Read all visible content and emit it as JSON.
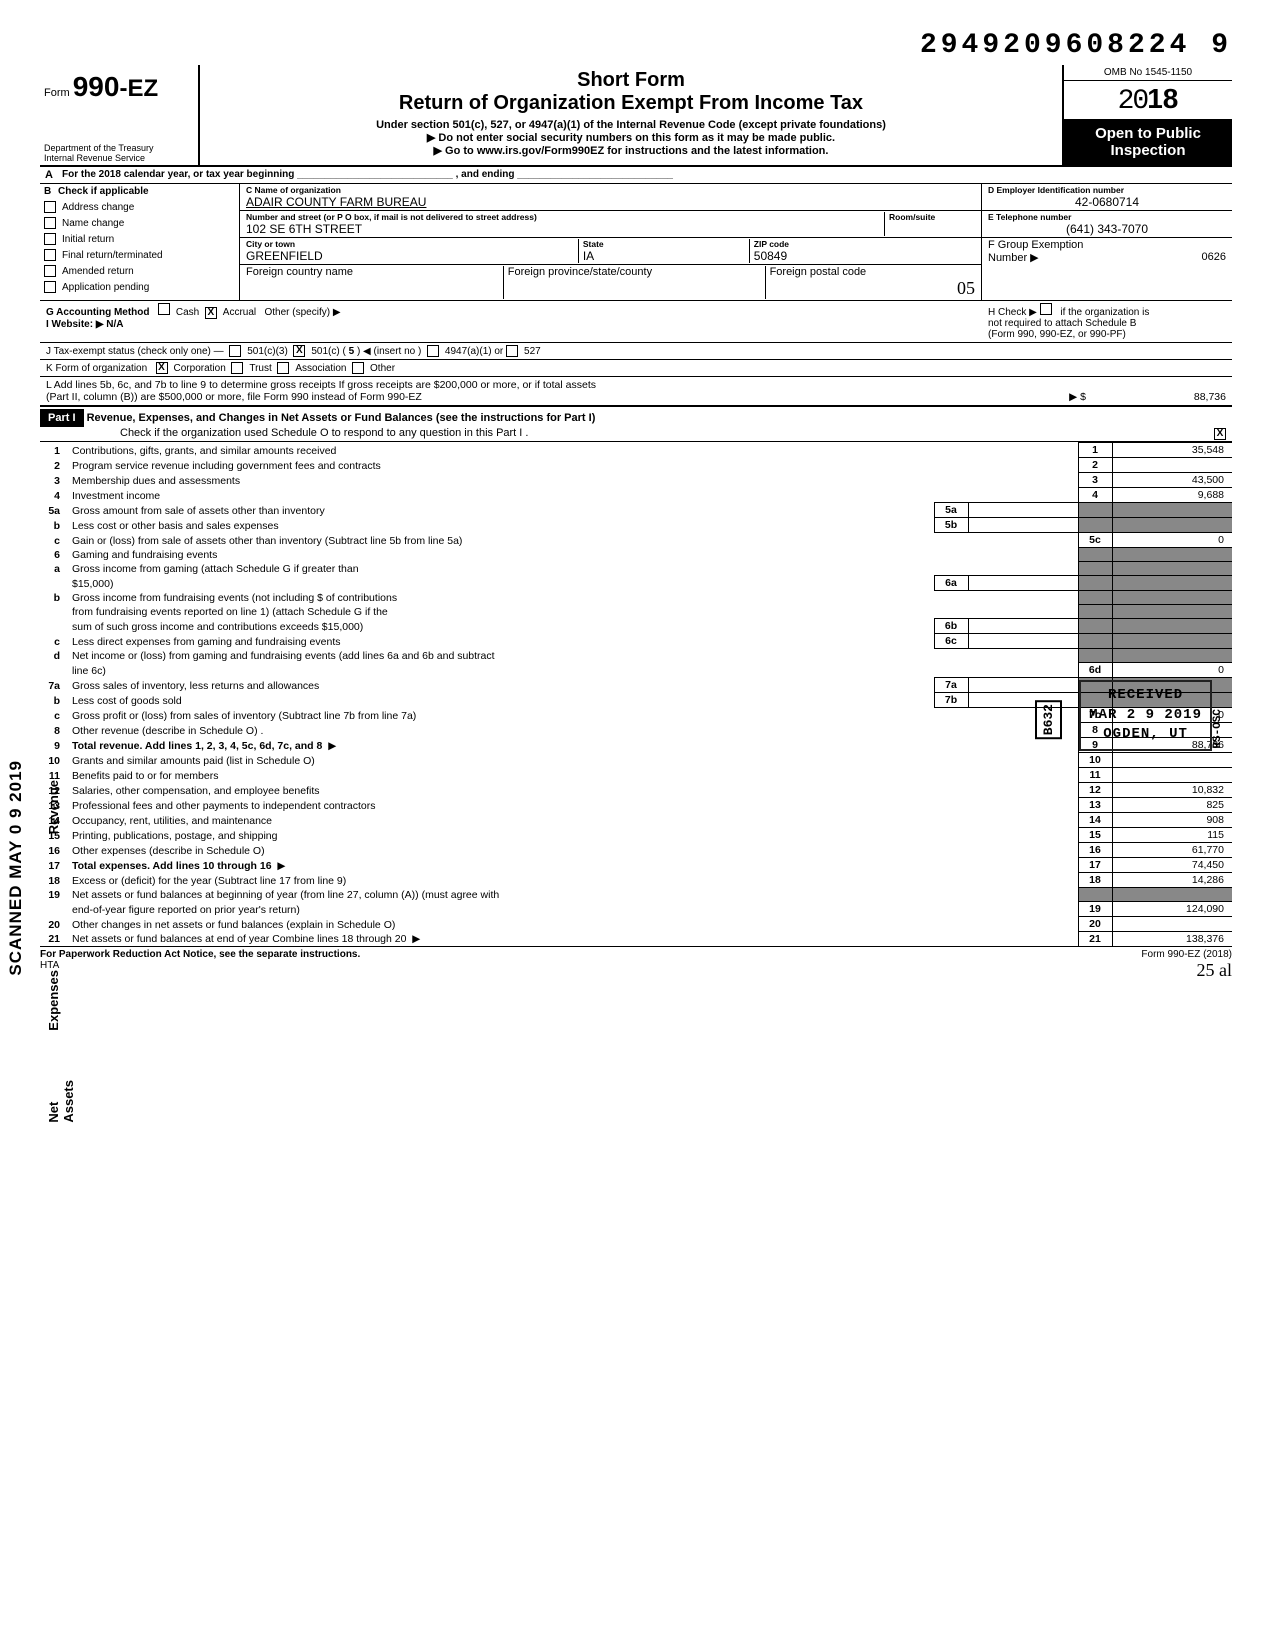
{
  "dln": "2949209608224 9",
  "header": {
    "form_prefix": "Form ",
    "form_number": "990",
    "form_suffix": "-EZ",
    "title_line1": "Short Form",
    "title_line2": "Return of Organization Exempt From Income Tax",
    "sub1": "Under section 501(c), 527, or 4947(a)(1) of the Internal Revenue Code (except private foundations)",
    "sub2": "▶  Do not enter social security numbers on this form as it may be made public.",
    "sub3": "▶  Go to www.irs.gov/Form990EZ for instructions and the latest information.",
    "omb": "OMB No 1545-1150",
    "year_pre": "20",
    "year_bold": "18",
    "open_pub_l1": "Open to Public",
    "open_pub_l2": "Inspection",
    "dept_l1": "Department of the Treasury",
    "dept_l2": "Internal Revenue Service"
  },
  "lineA": "For the 2018 calendar year, or tax year beginning ____________________________ , and ending ____________________________",
  "sectionB": {
    "heading": "Check if applicable",
    "items": [
      {
        "label": "Address change",
        "checked": false
      },
      {
        "label": "Name change",
        "checked": false
      },
      {
        "label": "Initial return",
        "checked": false
      },
      {
        "label": "Final return/terminated",
        "checked": false
      },
      {
        "label": "Amended return",
        "checked": false
      },
      {
        "label": "Application pending",
        "checked": false
      }
    ]
  },
  "sectionC": {
    "name_lbl": "C  Name of organization",
    "name_val": "ADAIR COUNTY FARM BUREAU",
    "addr_lbl": "Number and street (or P O  box, if mail is not delivered to street address)",
    "room_lbl": "Room/suite",
    "addr_val": "102 SE 6TH STREET",
    "city_lbl": "City or town",
    "city_val": "GREENFIELD",
    "state_lbl": "State",
    "state_val": "IA",
    "zip_lbl": "ZIP code",
    "zip_val": "50849",
    "fcountry_lbl": "Foreign country name",
    "fprov_lbl": "Foreign province/state/county",
    "fpost_lbl": "Foreign postal code",
    "hand_05": "05"
  },
  "sectionD": {
    "ein_lbl": "D  Employer Identification number",
    "ein_val": "42-0680714",
    "tel_lbl": "E  Telephone number",
    "tel_val": "(641) 343-7070",
    "grp_lbl": "F  Group Exemption",
    "grp_lbl2": "Number ▶",
    "grp_val": "0626"
  },
  "lineG": {
    "label": "G   Accounting Method",
    "cash": "Cash",
    "accrual": "Accrual",
    "other": "Other (specify)  ▶",
    "accrual_checked": true
  },
  "lineH": {
    "label": "H  Check ▶",
    "txt1": "if the organization is",
    "txt2": "not required to attach Schedule B",
    "txt3": "(Form 990, 990-EZ, or 990-PF)"
  },
  "lineI": {
    "label": "I     Website: ▶  N/A"
  },
  "lineJ": {
    "label": "J    Tax-exempt status (check only one) —",
    "opt1": "501(c)(3)",
    "opt2_pre": "501(c) (",
    "opt2_num": "5",
    "opt2_post": ") ◀ (insert no )",
    "opt3": "4947(a)(1) or",
    "opt4": "527",
    "opt2_checked": true
  },
  "lineK": {
    "label": "K   Form of organization",
    "corp": "Corporation",
    "corp_checked": true,
    "trust": "Trust",
    "assoc": "Association",
    "other": "Other"
  },
  "lineL": {
    "l1": "L   Add lines 5b, 6c, and 7b to line 9 to determine gross receipts  If gross receipts are $200,000 or more, or if total assets",
    "l2": "(Part II, column (B)) are $500,000 or more, file Form 990 instead of Form 990-EZ",
    "arrow": "▶ $",
    "val": "88,736"
  },
  "part1": {
    "hdr": "Part I",
    "title": "Revenue, Expenses, and Changes in Net Assets or Fund Balances (see the instructions for Part I)",
    "sub": "Check if the organization used Schedule O to respond to any question in this Part I  .",
    "sub_checked": true
  },
  "lines": [
    {
      "n": "1",
      "d": "Contributions, gifts, grants, and similar amounts received",
      "r": "1",
      "v": "35,548"
    },
    {
      "n": "2",
      "d": "Program service revenue including government fees and contracts",
      "r": "2",
      "v": ""
    },
    {
      "n": "3",
      "d": "Membership dues and assessments",
      "r": "3",
      "v": "43,500"
    },
    {
      "n": "4",
      "d": "Investment income",
      "r": "4",
      "v": "9,688"
    },
    {
      "n": "5a",
      "d": "Gross amount from sale of assets other than inventory",
      "mn": "5a",
      "mv": "",
      "shade": true
    },
    {
      "n": "b",
      "d": "Less  cost or other basis and sales expenses",
      "mn": "5b",
      "mv": "",
      "shade": true
    },
    {
      "n": "c",
      "d": "Gain or (loss) from sale of assets other than inventory (Subtract line 5b from line 5a)",
      "r": "5c",
      "v": "0"
    },
    {
      "n": "6",
      "d": "Gaming and fundraising events",
      "shade": true
    },
    {
      "n": "a",
      "d": "Gross income from gaming (attach Schedule G if greater than",
      "cont": true,
      "shade": true
    },
    {
      "n": "",
      "d": "$15,000)",
      "mn": "6a",
      "mv": "",
      "shade": true
    },
    {
      "n": "b",
      "d": "Gross income from fundraising events (not including        $                       of contributions",
      "cont": true,
      "shade": true
    },
    {
      "n": "",
      "d": "from fundraising events reported on line 1) (attach Schedule G if the",
      "cont": true,
      "shade": true
    },
    {
      "n": "",
      "d": "sum of such gross income and contributions exceeds $15,000)",
      "mn": "6b",
      "mv": "",
      "shade": true
    },
    {
      "n": "c",
      "d": "Less  direct expenses from gaming and fundraising events",
      "mn": "6c",
      "mv": "",
      "shade": true
    },
    {
      "n": "d",
      "d": "Net income or (loss) from gaming and fundraising events (add lines 6a and 6b and subtract",
      "cont": true,
      "shade": true
    },
    {
      "n": "",
      "d": "line 6c)",
      "r": "6d",
      "v": "0"
    },
    {
      "n": "7a",
      "d": "Gross sales of inventory, less returns and allowances",
      "mn": "7a",
      "mv": "",
      "shade": true
    },
    {
      "n": "b",
      "d": "Less  cost of goods sold",
      "mn": "7b",
      "mv": "",
      "shade": true
    },
    {
      "n": "c",
      "d": "Gross profit or (loss) from sales of inventory (Subtract line 7b from line 7a)",
      "r": "7c",
      "v": "0"
    },
    {
      "n": "8",
      "d": "Other revenue (describe in Schedule O) .",
      "r": "8",
      "v": ""
    },
    {
      "n": "9",
      "d": "Total revenue. Add lines 1, 2, 3, 4, 5c, 6d, 7c, and 8",
      "r": "9",
      "v": "88,736",
      "bold": true,
      "arrow": true
    },
    {
      "n": "10",
      "d": "Grants and similar amounts paid (list in Schedule O)",
      "r": "10",
      "v": ""
    },
    {
      "n": "11",
      "d": "Benefits paid to or for members",
      "r": "11",
      "v": ""
    },
    {
      "n": "12",
      "d": "Salaries, other compensation, and employee benefits",
      "r": "12",
      "v": "10,832"
    },
    {
      "n": "13",
      "d": "Professional fees and other payments to independent contractors",
      "r": "13",
      "v": "825"
    },
    {
      "n": "14",
      "d": "Occupancy, rent, utilities, and maintenance",
      "r": "14",
      "v": "908"
    },
    {
      "n": "15",
      "d": "Printing, publications, postage, and shipping",
      "r": "15",
      "v": "115"
    },
    {
      "n": "16",
      "d": "Other expenses (describe in Schedule O)",
      "r": "16",
      "v": "61,770"
    },
    {
      "n": "17",
      "d": "Total expenses. Add lines 10 through 16",
      "r": "17",
      "v": "74,450",
      "bold": true,
      "arrow": true
    },
    {
      "n": "18",
      "d": "Excess or (deficit) for the year (Subtract line 17 from line 9)",
      "r": "18",
      "v": "14,286"
    },
    {
      "n": "19",
      "d": "Net assets or fund balances at beginning of year (from line 27, column (A)) (must agree with",
      "cont": true,
      "shade": true
    },
    {
      "n": "",
      "d": "end-of-year figure reported on prior year's return)",
      "r": "19",
      "v": "124,090"
    },
    {
      "n": "20",
      "d": "Other changes in net assets or fund balances (explain in Schedule O)",
      "r": "20",
      "v": ""
    },
    {
      "n": "21",
      "d": "Net assets or fund balances at end of year  Combine lines 18 through 20",
      "r": "21",
      "v": "138,376",
      "arrow": true
    }
  ],
  "footer": {
    "left": "For Paperwork Reduction Act Notice, see the separate instructions.",
    "hta": "HTA",
    "right": "Form 990-EZ (2018)",
    "hand": "25    al"
  },
  "stamps": {
    "received": "RECEIVED",
    "date": "MAR 2 9 2019",
    "city": "OGDEN, UT",
    "b63": "B632",
    "osc": "RS-OSC"
  },
  "side": {
    "scanned": "SCANNED MAY 0 9 2019",
    "revenue": "Revenue",
    "expenses": "Expenses",
    "netassets": "Net Assets"
  }
}
